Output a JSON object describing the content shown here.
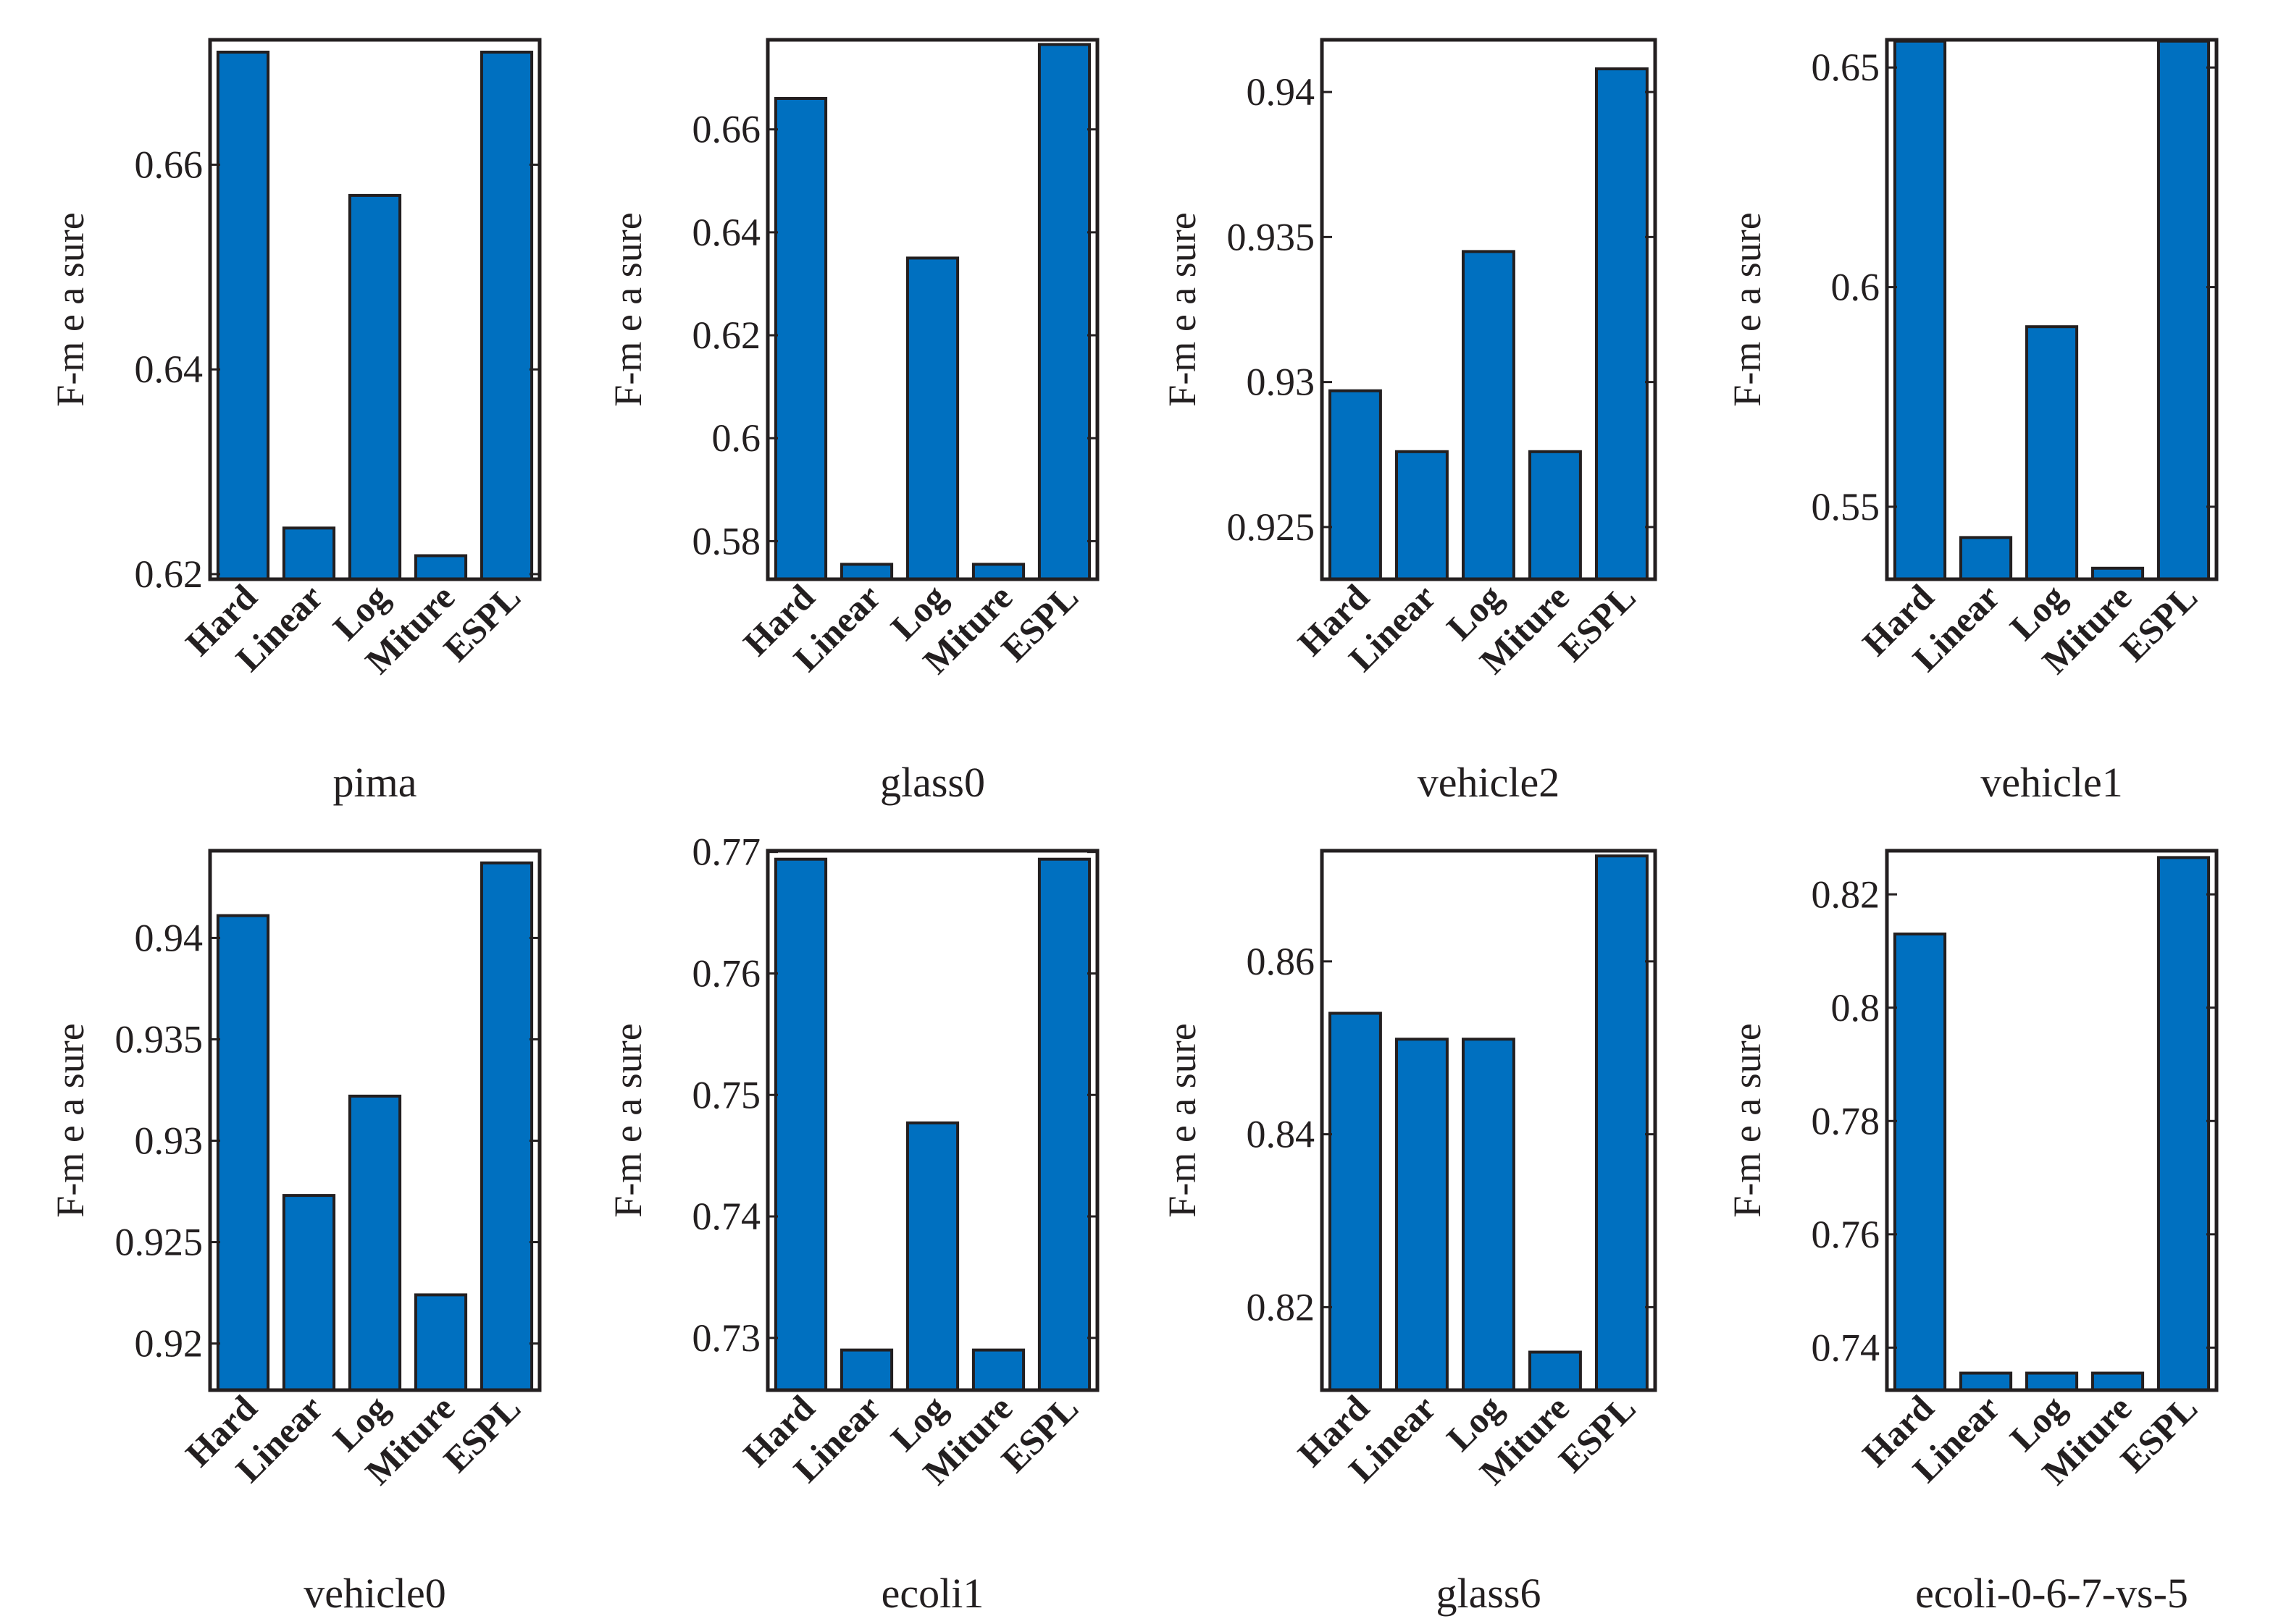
{
  "colors": {
    "bar": "#0070c0",
    "axis": "#231f20"
  },
  "chart_data": [
    {
      "type": "bar",
      "title": "pima",
      "xlabel": "pima",
      "ylabel": "F-m e a sure",
      "categories": [
        "Hard",
        "Linear",
        "Log",
        "Miture",
        "ESPL"
      ],
      "values": [
        0.671,
        0.6245,
        0.657,
        0.6218,
        0.671
      ],
      "ylim": [
        0.6195,
        0.6722
      ],
      "yticks": [
        0.62,
        0.64,
        0.66
      ],
      "ytick_labels": [
        "0.62",
        "0.64",
        "0.66"
      ]
    },
    {
      "type": "bar",
      "title": "glass0",
      "xlabel": "glass0",
      "ylabel": "F-m e a sure",
      "categories": [
        "Hard",
        "Linear",
        "Log",
        "Miture",
        "ESPL"
      ],
      "values": [
        0.666,
        0.5755,
        0.635,
        0.5755,
        0.6765
      ],
      "ylim": [
        0.5726,
        0.6774
      ],
      "yticks": [
        0.58,
        0.6,
        0.62,
        0.64,
        0.66
      ],
      "ytick_labels": [
        "0.58",
        "0.6",
        "0.62",
        "0.64",
        "0.66"
      ]
    },
    {
      "type": "bar",
      "title": "vehicle2",
      "xlabel": "vehicle2",
      "ylabel": "F-m e a sure",
      "categories": [
        "Hard",
        "Linear",
        "Log",
        "Miture",
        "ESPL"
      ],
      "values": [
        0.9297,
        0.9276,
        0.9345,
        0.9276,
        0.9408
      ],
      "ylim": [
        0.9232,
        0.9418
      ],
      "yticks": [
        0.925,
        0.93,
        0.935,
        0.94
      ],
      "ytick_labels": [
        "0.925",
        "0.93",
        "0.935",
        "0.94"
      ]
    },
    {
      "type": "bar",
      "title": "vehicle1",
      "xlabel": "vehicle1",
      "ylabel": "F-m e a sure",
      "categories": [
        "Hard",
        "Linear",
        "Log",
        "Miture",
        "ESPL"
      ],
      "values": [
        0.656,
        0.543,
        0.591,
        0.536,
        0.656
      ],
      "ylim": [
        0.5335,
        0.6563
      ],
      "yticks": [
        0.55,
        0.6,
        0.65
      ],
      "ytick_labels": [
        "0.55",
        "0.6",
        "0.65"
      ]
    },
    {
      "type": "bar",
      "title": "vehicle0",
      "xlabel": "vehicle0",
      "ylabel": "F-m e a sure",
      "categories": [
        "Hard",
        "Linear",
        "Log",
        "Miture",
        "ESPL"
      ],
      "values": [
        0.9411,
        0.9273,
        0.9322,
        0.9224,
        0.9437
      ],
      "ylim": [
        0.9177,
        0.9443
      ],
      "yticks": [
        0.92,
        0.925,
        0.93,
        0.935,
        0.94
      ],
      "ytick_labels": [
        "0.92",
        "0.925",
        "0.93",
        "0.935",
        "0.94"
      ]
    },
    {
      "type": "bar",
      "title": "ecoli1",
      "xlabel": "ecoli1",
      "ylabel": "F-m e a sure",
      "categories": [
        "Hard",
        "Linear",
        "Log",
        "Miture",
        "ESPL"
      ],
      "values": [
        0.7694,
        0.729,
        0.7477,
        0.729,
        0.7694
      ],
      "ylim": [
        0.7257,
        0.7701
      ],
      "yticks": [
        0.73,
        0.74,
        0.75,
        0.76,
        0.77
      ],
      "ytick_labels": [
        "0.73",
        "0.74",
        "0.75",
        "0.76",
        "0.77"
      ]
    },
    {
      "type": "bar",
      "title": "glass6",
      "xlabel": "glass6",
      "ylabel": "F-m e a sure",
      "categories": [
        "Hard",
        "Linear",
        "Log",
        "Miture",
        "ESPL"
      ],
      "values": [
        0.854,
        0.851,
        0.851,
        0.8148,
        0.8722
      ],
      "ylim": [
        0.8104,
        0.8728
      ],
      "yticks": [
        0.82,
        0.84,
        0.86
      ],
      "ytick_labels": [
        "0.82",
        "0.84",
        "0.86"
      ]
    },
    {
      "type": "bar",
      "title": "ecoli-0-6-7-vs-5",
      "xlabel": "ecoli-0-6-7-vs-5",
      "ylabel": "F-m e a sure",
      "categories": [
        "Hard",
        "Linear",
        "Log",
        "Miture",
        "ESPL"
      ],
      "values": [
        0.813,
        0.7355,
        0.7355,
        0.7355,
        0.8265
      ],
      "ylim": [
        0.7325,
        0.8277
      ],
      "yticks": [
        0.74,
        0.76,
        0.78,
        0.8,
        0.82
      ],
      "ytick_labels": [
        "0.74",
        "0.76",
        "0.78",
        "0.8",
        "0.82"
      ]
    }
  ]
}
